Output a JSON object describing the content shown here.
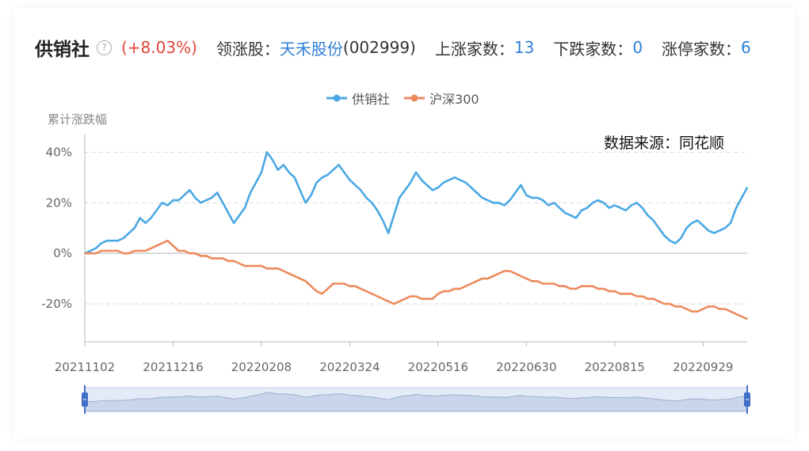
{
  "header": {
    "sector_name": "供销社",
    "help_icon": "question-circle-icon",
    "change": "(+8.03%)",
    "leader_label": "领涨股：",
    "leader_name": "天禾股份",
    "leader_code": "(002999)",
    "up_label": "上涨家数：",
    "up_count": "13",
    "down_label": "下跌家数：",
    "down_count": "0",
    "limit_label": "涨停家数：",
    "limit_count": "6"
  },
  "source_note": "数据来源：同花顺",
  "colors": {
    "series1": "#4aa8e4",
    "series2": "#ec8a5c",
    "red": "#e0443a",
    "blue": "#2f7fd6"
  },
  "chart_data": {
    "type": "line",
    "ylabel": "累计涨跌幅",
    "yticks": [
      "40%",
      "20%",
      "0%",
      "-20%"
    ],
    "ytick_values": [
      40,
      20,
      0,
      -20
    ],
    "ylim": [
      -35,
      47
    ],
    "xlim": [
      0,
      240
    ],
    "xticks": [
      "20211102",
      "20211216",
      "20220208",
      "20220324",
      "20220516",
      "20220630",
      "20220815",
      "20220929"
    ],
    "xtick_positions": [
      0,
      32,
      64,
      96,
      128,
      160,
      192,
      224
    ],
    "grid": "horizontal dashed",
    "legend_position": "top-center",
    "series": [
      {
        "name": "供销社",
        "color": "#4aa8e4",
        "x": [
          0,
          4,
          6,
          8,
          10,
          12,
          14,
          16,
          18,
          20,
          22,
          24,
          26,
          28,
          30,
          32,
          34,
          36,
          38,
          40,
          42,
          44,
          46,
          48,
          50,
          52,
          54,
          56,
          58,
          60,
          62,
          64,
          66,
          68,
          70,
          72,
          74,
          76,
          78,
          80,
          82,
          84,
          86,
          88,
          90,
          92,
          94,
          96,
          98,
          100,
          102,
          104,
          106,
          108,
          110,
          112,
          114,
          116,
          118,
          120,
          122,
          124,
          126,
          128,
          130,
          132,
          134,
          136,
          138,
          140,
          142,
          144,
          146,
          148,
          150,
          152,
          154,
          156,
          158,
          160,
          162,
          164,
          166,
          168,
          170,
          172,
          174,
          176,
          178,
          180,
          182,
          184,
          186,
          188,
          190,
          192,
          194,
          196,
          198,
          200,
          202,
          204,
          206,
          208,
          210,
          212,
          214,
          216,
          218,
          220,
          222,
          224,
          226,
          228,
          230,
          232,
          234,
          236,
          238,
          240
        ],
        "values": [
          0,
          2,
          4,
          5,
          5,
          5,
          6,
          8,
          10,
          14,
          12,
          14,
          17,
          20,
          19,
          21,
          21,
          23,
          25,
          22,
          20,
          21,
          22,
          24,
          20,
          16,
          12,
          15,
          18,
          24,
          28,
          32,
          40,
          37,
          33,
          35,
          32,
          30,
          25,
          20,
          23,
          28,
          30,
          31,
          33,
          35,
          32,
          29,
          27,
          25,
          22,
          20,
          17,
          13,
          8,
          15,
          22,
          25,
          28,
          32,
          29,
          27,
          25,
          26,
          28,
          29,
          30,
          29,
          28,
          26,
          24,
          22,
          21,
          20,
          20,
          19,
          21,
          24,
          27,
          23,
          22,
          22,
          21,
          19,
          20,
          18,
          16,
          15,
          14,
          17,
          18,
          20,
          21,
          20,
          18,
          19,
          18,
          17,
          19,
          20,
          18,
          15,
          13,
          10,
          7,
          5,
          4,
          6,
          10,
          12,
          13,
          11,
          9,
          8,
          9,
          10,
          12,
          18,
          22,
          26
        ]
      },
      {
        "name": "沪深300",
        "color": "#ec8a5c",
        "x": [
          0,
          4,
          6,
          8,
          10,
          12,
          14,
          16,
          18,
          20,
          22,
          24,
          26,
          28,
          30,
          32,
          34,
          36,
          38,
          40,
          42,
          44,
          46,
          48,
          50,
          52,
          54,
          56,
          58,
          60,
          62,
          64,
          66,
          68,
          70,
          72,
          74,
          76,
          78,
          80,
          82,
          84,
          86,
          88,
          90,
          92,
          94,
          96,
          98,
          100,
          102,
          104,
          106,
          108,
          110,
          112,
          114,
          116,
          118,
          120,
          122,
          124,
          126,
          128,
          130,
          132,
          134,
          136,
          138,
          140,
          142,
          144,
          146,
          148,
          150,
          152,
          154,
          156,
          158,
          160,
          162,
          164,
          166,
          168,
          170,
          172,
          174,
          176,
          178,
          180,
          182,
          184,
          186,
          188,
          190,
          192,
          194,
          196,
          198,
          200,
          202,
          204,
          206,
          208,
          210,
          212,
          214,
          216,
          218,
          220,
          222,
          224,
          226,
          228,
          230,
          232,
          234,
          236,
          238,
          240
        ],
        "values": [
          0,
          0,
          1,
          1,
          1,
          1,
          0,
          0,
          1,
          1,
          1,
          2,
          3,
          4,
          5,
          3,
          1,
          1,
          0,
          0,
          -1,
          -1,
          -2,
          -2,
          -2,
          -3,
          -3,
          -4,
          -5,
          -5,
          -5,
          -5,
          -6,
          -6,
          -6,
          -7,
          -8,
          -9,
          -10,
          -11,
          -13,
          -15,
          -16,
          -14,
          -12,
          -12,
          -12,
          -13,
          -13,
          -14,
          -15,
          -16,
          -17,
          -18,
          -19,
          -20,
          -19,
          -18,
          -17,
          -17,
          -18,
          -18,
          -18,
          -16,
          -15,
          -15,
          -14,
          -14,
          -13,
          -12,
          -11,
          -10,
          -10,
          -9,
          -8,
          -7,
          -7,
          -8,
          -9,
          -10,
          -11,
          -11,
          -12,
          -12,
          -12,
          -13,
          -13,
          -14,
          -14,
          -13,
          -13,
          -13,
          -14,
          -14,
          -15,
          -15,
          -16,
          -16,
          -16,
          -17,
          -17,
          -18,
          -18,
          -19,
          -20,
          -20,
          -21,
          -21,
          -22,
          -23,
          -23,
          -22,
          -21,
          -21,
          -22,
          -22,
          -23,
          -24,
          -25,
          -26
        ]
      }
    ]
  }
}
